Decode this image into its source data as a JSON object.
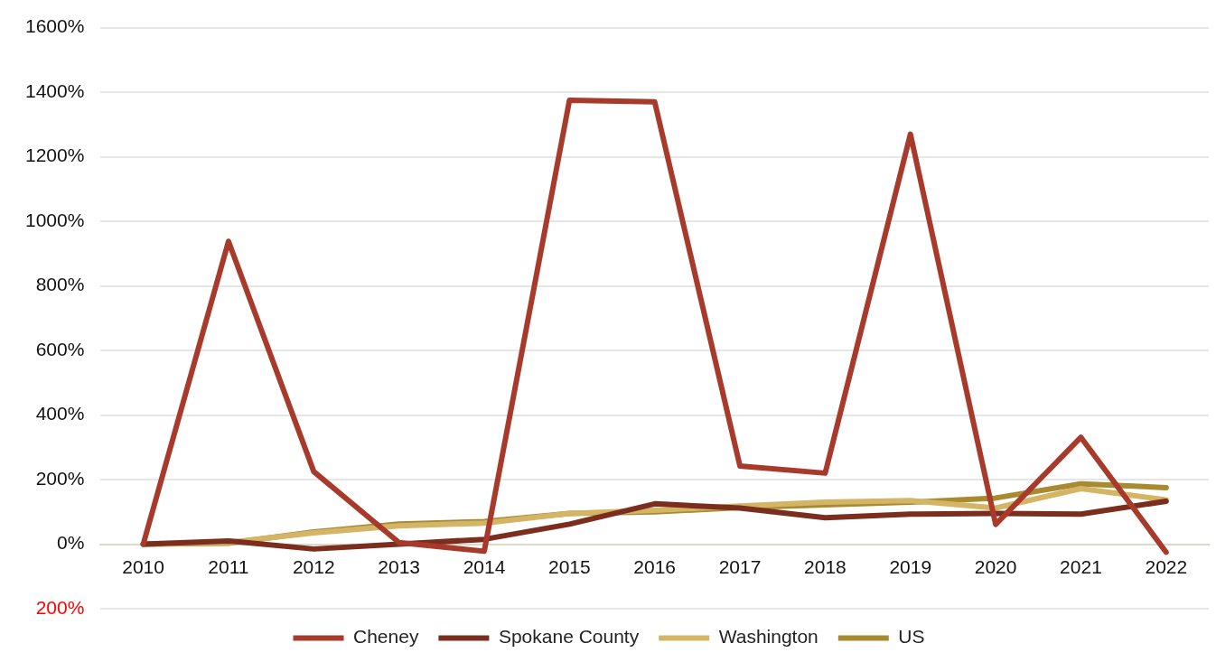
{
  "chart_data": {
    "type": "line",
    "categories": [
      "2010",
      "2011",
      "2012",
      "2013",
      "2014",
      "2015",
      "2016",
      "2017",
      "2018",
      "2019",
      "2020",
      "2021",
      "2022"
    ],
    "series": [
      {
        "name": "Cheney",
        "color": "#a83a2c",
        "values": [
          0,
          938,
          225,
          5,
          -22,
          1375,
          1370,
          242,
          220,
          1270,
          61,
          331,
          -25
        ]
      },
      {
        "name": "Spokane County",
        "color": "#7b2d1e",
        "values": [
          0,
          10,
          -15,
          0,
          15,
          62,
          125,
          112,
          82,
          93,
          95,
          93,
          133
        ]
      },
      {
        "name": "Washington",
        "color": "#d4b566",
        "values": [
          0,
          5,
          35,
          57,
          65,
          95,
          105,
          118,
          130,
          135,
          112,
          172,
          137
        ]
      },
      {
        "name": "US",
        "color": "#a88a30",
        "values": [
          0,
          3,
          38,
          62,
          70,
          95,
          100,
          113,
          122,
          130,
          143,
          187,
          175
        ]
      }
    ],
    "ylim": [
      -200,
      1600
    ],
    "yticks": [
      {
        "value": -200,
        "label": "200%"
      },
      {
        "value": 0,
        "label": "0%"
      },
      {
        "value": 200,
        "label": "200%"
      },
      {
        "value": 400,
        "label": "400%"
      },
      {
        "value": 600,
        "label": "600%"
      },
      {
        "value": 800,
        "label": "800%"
      },
      {
        "value": 1000,
        "label": "1000%"
      },
      {
        "value": 1200,
        "label": "1200%"
      },
      {
        "value": 1400,
        "label": "1400%"
      },
      {
        "value": 1600,
        "label": "1600%"
      }
    ],
    "grid": "y",
    "legend": "bottom",
    "marker": "none",
    "line_style": "solid"
  }
}
